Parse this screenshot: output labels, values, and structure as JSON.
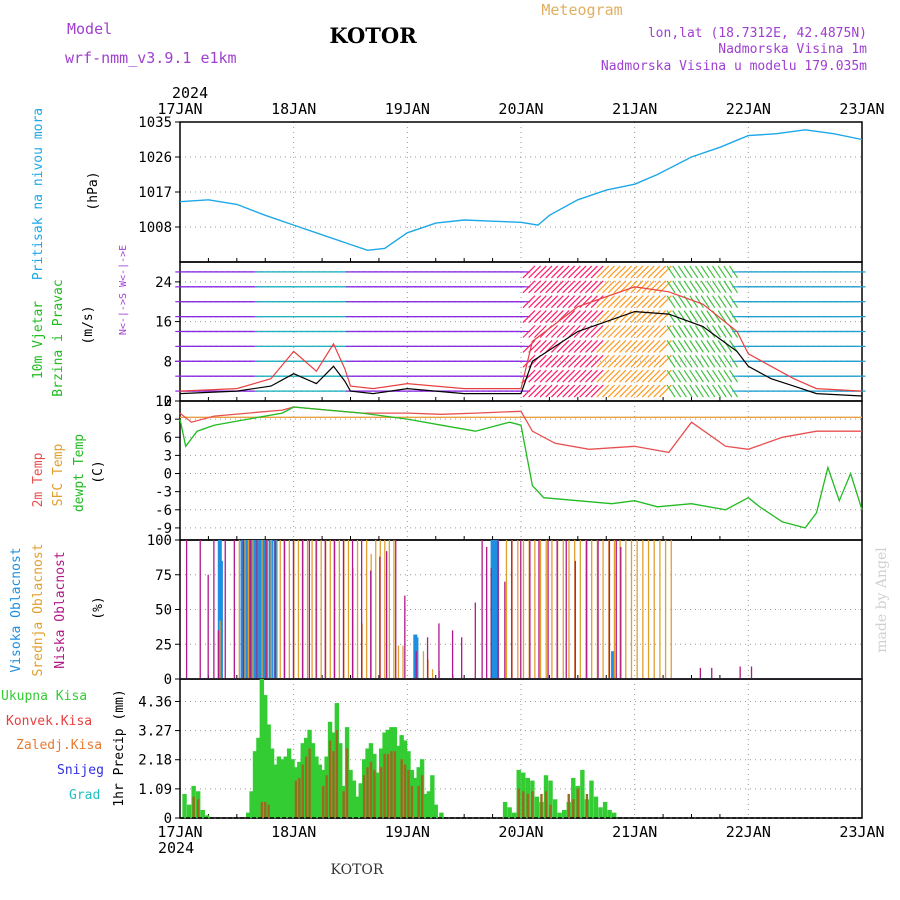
{
  "header": {
    "model_label": "Model",
    "model_name": "wrf-nmm_v3.9.1  e1km",
    "city": "KOTOR",
    "meteogram": "Meteogram",
    "lonlat": "lon,lat (18.7312E, 42.4875N)",
    "elevation": "Nadmorska Visina 1m",
    "model_elevation": "Nadmorska Visina u modelu 179.035m"
  },
  "footer": {
    "city": "KOTOR",
    "made_by": "made by Angel"
  },
  "time_axis": {
    "year": "2024",
    "labels": [
      "17JAN",
      "18JAN",
      "19JAN",
      "20JAN",
      "21JAN",
      "22JAN",
      "23JAN"
    ]
  },
  "colors": {
    "pressure": "#1ea8e8",
    "wind_black": "#000000",
    "wind_red": "#e84040",
    "temp": "#e85050",
    "sfc_temp": "#e8a040",
    "dewpt": "#22bb22",
    "cloud_high": "#1e8fe0",
    "cloud_mid": "#e0a030",
    "cloud_low": "#b01888",
    "rain_total": "#33cc33",
    "rain_conv": "#e84040",
    "rain_frozen": "#e87a30",
    "snow": "#3030e0",
    "graupel": "#20c0c0",
    "label_purple": "#a040d0",
    "label_orange": "#e0b060"
  },
  "chart_data": [
    {
      "id": "pressure",
      "type": "line",
      "title": "",
      "ylabel_lines": [
        "Pritisak na nivou mora",
        "(hPa)"
      ],
      "ylim": [
        999,
        1035
      ],
      "yticks": [
        1008,
        1017,
        1026,
        1035
      ],
      "x_days": [
        0,
        0.25,
        0.5,
        0.75,
        1.0,
        1.25,
        1.5,
        1.65,
        1.8,
        2.0,
        2.25,
        2.5,
        2.75,
        3.0,
        3.15,
        3.25,
        3.5,
        3.75,
        4.0,
        4.2,
        4.5,
        4.75,
        5.0,
        5.25,
        5.5,
        5.75,
        6.0
      ],
      "values": [
        1014.5,
        1015.0,
        1013.8,
        1011.0,
        1008.5,
        1006.0,
        1003.5,
        1002.0,
        1002.5,
        1006.5,
        1009.0,
        1009.8,
        1009.5,
        1009.2,
        1008.5,
        1011.0,
        1015.0,
        1017.5,
        1019.0,
        1021.5,
        1026.0,
        1028.5,
        1031.5,
        1032.0,
        1033.0,
        1032.0,
        1030.5
      ]
    },
    {
      "id": "wind",
      "type": "line",
      "title": "",
      "ylabel_lines": [
        "10m Vjetar",
        "Brzina i Pravac",
        "(m/s)"
      ],
      "compass": "N<-|->S  W<-|->E",
      "ylim": [
        0,
        28
      ],
      "yticks": [
        0,
        8,
        16,
        24
      ],
      "series": [
        {
          "name": "",
          "x_days": [
            0,
            0.5,
            0.8,
            1.0,
            1.2,
            1.35,
            1.45,
            1.5,
            1.7,
            2.0,
            2.5,
            3.0,
            3.1,
            3.5,
            4.0,
            4.3,
            4.6,
            4.9,
            5.0,
            5.2,
            5.4,
            5.6,
            6.0
          ],
          "values": [
            1.5,
            2.0,
            3.0,
            5.5,
            3.5,
            7.0,
            4.0,
            2.0,
            1.5,
            2.5,
            1.5,
            1.5,
            8.0,
            14.0,
            18.0,
            17.5,
            15.0,
            10.0,
            7.0,
            4.5,
            3.0,
            1.5,
            1.0
          ]
        },
        {
          "name": "",
          "x_days": [
            0,
            0.5,
            0.8,
            1.0,
            1.2,
            1.35,
            1.45,
            1.5,
            1.7,
            2.0,
            2.5,
            3.0,
            3.1,
            3.5,
            4.0,
            4.3,
            4.6,
            4.9,
            5.0,
            5.2,
            5.4,
            5.6,
            6.0
          ],
          "values": [
            2.0,
            2.5,
            4.5,
            10.0,
            6.0,
            11.5,
            6.5,
            3.0,
            2.5,
            3.5,
            2.5,
            2.5,
            12.0,
            19.0,
            23.0,
            22.0,
            19.5,
            14.0,
            9.5,
            7.0,
            4.5,
            2.5,
            2.0
          ]
        }
      ]
    },
    {
      "id": "temperature",
      "type": "line",
      "title": "",
      "ylabel_lines": [
        "2m Temp",
        "SFC Temp",
        "dewpt Temp",
        "(C)"
      ],
      "ylim": [
        -11,
        12
      ],
      "yticks": [
        -9,
        -6,
        -3,
        0,
        3,
        6,
        9,
        12
      ],
      "series": [
        {
          "name": "2m Temp",
          "x_days": [
            0,
            0.1,
            0.3,
            0.6,
            0.9,
            1.0,
            1.3,
            1.6,
            2.0,
            2.3,
            2.6,
            3.0,
            3.1,
            3.3,
            3.6,
            4.0,
            4.3,
            4.5,
            4.8,
            5.0,
            5.3,
            5.6,
            6.0
          ],
          "values": [
            10.0,
            8.5,
            9.5,
            10.0,
            10.5,
            11.0,
            10.5,
            10.0,
            10.0,
            9.8,
            10.0,
            10.3,
            7.0,
            5.0,
            4.0,
            4.5,
            3.5,
            8.5,
            4.5,
            4.0,
            6.0,
            7.0,
            7.0
          ]
        },
        {
          "name": "SFC Temp",
          "x_days": [
            0,
            6
          ],
          "values": [
            9.3,
            9.3
          ]
        },
        {
          "name": "dewpt Temp",
          "x_days": [
            0,
            0.05,
            0.15,
            0.3,
            0.6,
            0.9,
            1.0,
            1.3,
            1.6,
            2.0,
            2.3,
            2.6,
            2.9,
            3.0,
            3.1,
            3.2,
            3.5,
            3.8,
            4.0,
            4.2,
            4.5,
            4.8,
            5.0,
            5.1,
            5.3,
            5.5,
            5.6,
            5.7,
            5.8,
            5.9,
            6.0
          ],
          "values": [
            9.0,
            4.5,
            7.0,
            8.0,
            9.0,
            10.0,
            11.0,
            10.5,
            10.0,
            9.0,
            8.0,
            7.0,
            8.5,
            8.0,
            -2.0,
            -4.0,
            -4.5,
            -5.0,
            -4.5,
            -5.5,
            -5.0,
            -6.0,
            -4.0,
            -5.5,
            -8.0,
            -9.0,
            -6.5,
            1.0,
            -4.5,
            0.0,
            -6.0
          ]
        }
      ]
    },
    {
      "id": "clouds",
      "type": "bar",
      "title": "",
      "ylabel_lines": [
        "Visoka Oblacnost",
        "Srednja Oblacnost",
        "Niska Oblacnost",
        "(%)"
      ],
      "ylim": [
        0,
        100
      ],
      "yticks": [
        0,
        25,
        50,
        75,
        100
      ],
      "series": [
        {
          "name": "Visoka Oblacnost",
          "x_days": [
            0.35,
            0.36,
            0.55,
            0.56,
            0.57,
            0.6,
            0.62,
            0.64,
            0.66,
            0.68,
            0.7,
            0.72,
            0.74,
            0.76,
            0.8,
            0.84,
            2.07,
            2.08,
            2.75,
            2.77,
            2.79,
            3.81
          ],
          "values": [
            100,
            85,
            100,
            100,
            100,
            100,
            100,
            100,
            100,
            100,
            100,
            100,
            100,
            100,
            100,
            100,
            32,
            30,
            100,
            100,
            100,
            20
          ]
        },
        {
          "name": "Srednja Oblacnost",
          "x_days": [
            0.33,
            0.5,
            0.55,
            0.58,
            0.62,
            0.66,
            0.7,
            0.74,
            0.78,
            0.82,
            0.86,
            0.9,
            0.94,
            0.98,
            1.02,
            1.06,
            1.1,
            1.14,
            1.18,
            1.22,
            1.26,
            1.3,
            1.34,
            1.38,
            1.42,
            1.46,
            1.5,
            1.54,
            1.58,
            1.62,
            1.66,
            1.7,
            1.74,
            1.78,
            1.82,
            1.86,
            1.9,
            1.94,
            2.12,
            2.16,
            2.2,
            2.26,
            2.38,
            2.85,
            2.9,
            2.95,
            3.0,
            3.05,
            3.1,
            3.15,
            3.2,
            3.25,
            3.3,
            3.35,
            3.4,
            3.45,
            3.5,
            3.55,
            3.6,
            3.65,
            3.7,
            3.75,
            3.8,
            3.85,
            3.9,
            3.95,
            4.0,
            4.05,
            4.1,
            4.15,
            4.2,
            4.25,
            4.3
          ],
          "values": [
            42,
            100,
            100,
            100,
            100,
            100,
            100,
            100,
            100,
            100,
            100,
            100,
            100,
            100,
            100,
            100,
            100,
            100,
            100,
            100,
            100,
            100,
            100,
            100,
            100,
            100,
            80,
            100,
            40,
            100,
            90,
            100,
            100,
            100,
            100,
            100,
            24,
            24,
            20,
            14,
            7,
            6,
            3,
            100,
            100,
            100,
            100,
            100,
            100,
            100,
            100,
            100,
            100,
            100,
            100,
            100,
            100,
            100,
            100,
            100,
            100,
            100,
            100,
            100,
            100,
            100,
            100,
            100,
            100,
            100,
            100,
            100,
            100
          ]
        },
        {
          "name": "Niska Oblacnost",
          "x_days": [
            0.08,
            0.2,
            0.27,
            0.32,
            0.36,
            0.42,
            0.5,
            0.58,
            0.64,
            0.7,
            0.78,
            0.86,
            0.94,
            1.02,
            1.1,
            1.16,
            1.22,
            1.3,
            1.38,
            1.46,
            1.54,
            1.62,
            1.7,
            1.78,
            1.84,
            1.92,
            2.0,
            2.1,
            2.2,
            2.3,
            2.42,
            2.5,
            2.62,
            2.68,
            2.72,
            2.76,
            2.82,
            2.88,
            2.94,
            3.02,
            3.1,
            3.18,
            3.26,
            3.34,
            3.42,
            3.5,
            3.6,
            3.7,
            3.8,
            3.86,
            3.9,
            4.6,
            4.7,
            4.95,
            5.05
          ],
          "values": [
            100,
            100,
            75,
            100,
            35,
            100,
            100,
            100,
            100,
            100,
            100,
            100,
            100,
            100,
            100,
            100,
            100,
            100,
            100,
            100,
            100,
            100,
            78,
            88,
            92,
            100,
            60,
            20,
            30,
            40,
            35,
            30,
            55,
            100,
            95,
            80,
            100,
            70,
            100,
            100,
            100,
            100,
            100,
            100,
            100,
            85,
            100,
            100,
            100,
            100,
            95,
            8,
            8,
            9,
            9
          ]
        }
      ]
    },
    {
      "id": "precipitation",
      "type": "bar",
      "title": "",
      "ylabel_lines": [
        "1hr Precip (mm)"
      ],
      "legend": [
        "Ukupna Kisa",
        "Konvek.Kisa",
        "Zaledj.Kisa",
        "Snijeg",
        "Grad"
      ],
      "ylim": [
        0,
        5.2
      ],
      "yticks": [
        0,
        1.09,
        2.18,
        3.27,
        4.36
      ],
      "series": [
        {
          "name": "Ukupna Kisa",
          "x_days": [
            0.04,
            0.08,
            0.12,
            0.16,
            0.2,
            0.24,
            0.6,
            0.63,
            0.66,
            0.69,
            0.72,
            0.75,
            0.78,
            0.81,
            0.84,
            0.87,
            0.9,
            0.93,
            0.96,
            0.99,
            1.02,
            1.05,
            1.08,
            1.11,
            1.14,
            1.17,
            1.2,
            1.23,
            1.26,
            1.29,
            1.32,
            1.35,
            1.38,
            1.41,
            1.44,
            1.47,
            1.5,
            1.53,
            1.56,
            1.59,
            1.62,
            1.65,
            1.68,
            1.71,
            1.74,
            1.77,
            1.8,
            1.83,
            1.86,
            1.89,
            1.92,
            1.95,
            1.98,
            2.01,
            2.04,
            2.07,
            2.1,
            2.13,
            2.16,
            2.19,
            2.22,
            2.25,
            2.3,
            2.86,
            2.9,
            2.94,
            2.98,
            3.02,
            3.06,
            3.1,
            3.14,
            3.18,
            3.22,
            3.26,
            3.3,
            3.34,
            3.38,
            3.42,
            3.46,
            3.5,
            3.54,
            3.58,
            3.62,
            3.66,
            3.7,
            3.74,
            3.78,
            3.82
          ],
          "values": [
            0.9,
            0.5,
            1.2,
            1.0,
            0.3,
            0.1,
            0.2,
            1.0,
            2.5,
            3.0,
            5.2,
            4.6,
            3.5,
            2.6,
            2.0,
            2.3,
            2.2,
            2.3,
            2.6,
            2.2,
            1.9,
            2.1,
            2.8,
            3.0,
            3.3,
            2.8,
            2.3,
            2.0,
            1.8,
            2.3,
            3.6,
            3.2,
            4.3,
            2.8,
            1.2,
            3.4,
            1.8,
            1.4,
            0.8,
            1.3,
            2.2,
            2.6,
            2.8,
            2.4,
            1.7,
            2.6,
            3.2,
            3.3,
            3.4,
            3.4,
            2.7,
            3.1,
            2.9,
            2.5,
            1.8,
            1.5,
            1.9,
            2.2,
            0.9,
            1.0,
            1.6,
            0.5,
            0.2,
            0.6,
            0.4,
            0.2,
            1.8,
            1.7,
            1.5,
            1.4,
            0.8,
            0.6,
            1.6,
            1.4,
            0.7,
            0.2,
            0.3,
            0.6,
            1.5,
            1.2,
            1.8,
            0.7,
            1.4,
            0.8,
            0.4,
            0.6,
            0.3,
            0.2
          ]
        },
        {
          "name": "Konvek.Kisa",
          "x_days": [
            0.12,
            0.16,
            0.72,
            0.75,
            0.78,
            1.02,
            1.05,
            1.08,
            1.11,
            1.14,
            1.26,
            1.29,
            1.32,
            1.35,
            1.38,
            1.44,
            1.47,
            1.62,
            1.65,
            1.68,
            1.71,
            1.77,
            1.8,
            1.83,
            1.86,
            1.89,
            1.95,
            1.98,
            2.01,
            2.04,
            2.1,
            2.13,
            2.98,
            3.02,
            3.06,
            3.1,
            3.18,
            3.22,
            3.26,
            3.42,
            3.46,
            3.5,
            3.58
          ],
          "values": [
            0.8,
            0.7,
            0.6,
            0.6,
            0.5,
            1.4,
            1.5,
            2.0,
            2.3,
            2.6,
            1.2,
            1.6,
            2.9,
            2.5,
            3.3,
            1.0,
            2.6,
            1.6,
            1.9,
            2.1,
            1.8,
            1.9,
            2.4,
            2.4,
            2.5,
            2.5,
            2.2,
            2.0,
            1.8,
            1.2,
            1.2,
            1.6,
            1.1,
            1.0,
            0.9,
            1.0,
            0.9,
            1.0,
            0.5,
            0.9,
            0.7,
            1.1,
            0.9
          ]
        }
      ]
    }
  ]
}
